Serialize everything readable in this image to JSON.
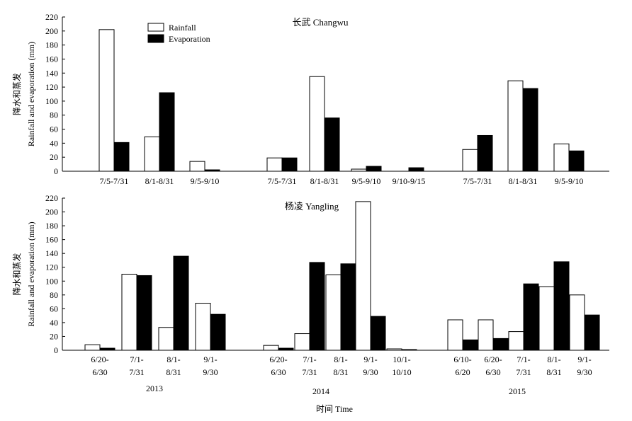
{
  "chart_data": [
    {
      "type": "bar",
      "title": "长武 Changwu",
      "ylabel_cn": "降水和蒸发",
      "ylabel_en": "Rainfall and evaporation (mm)",
      "ylim": [
        0,
        220
      ],
      "yticks": [
        0,
        20,
        40,
        60,
        80,
        100,
        120,
        140,
        160,
        180,
        200,
        220
      ],
      "legend": {
        "placement": "top-left",
        "entries": [
          "Rainfall",
          "Evaporation"
        ]
      },
      "series": [
        {
          "name": "Rainfall",
          "color": "#ffffff"
        },
        {
          "name": "Evaporation",
          "color": "#000000"
        }
      ],
      "groups": [
        {
          "year": "2013",
          "categories": [
            {
              "label": "7/5-7/31",
              "rainfall": 202,
              "evaporation": 41
            },
            {
              "label": "8/1-8/31",
              "rainfall": 49,
              "evaporation": 112
            },
            {
              "label": "9/5-9/10",
              "rainfall": 14,
              "evaporation": 2
            }
          ]
        },
        {
          "year": "2014",
          "categories": [
            {
              "label": "7/5-7/31",
              "rainfall": 19,
              "evaporation": 19
            },
            {
              "label": "8/1-8/31",
              "rainfall": 135,
              "evaporation": 76
            },
            {
              "label": "9/5-9/10",
              "rainfall": 3,
              "evaporation": 7
            },
            {
              "label": "9/10-9/15",
              "rainfall": 0,
              "evaporation": 5
            }
          ]
        },
        {
          "year": "2015",
          "categories": [
            {
              "label": "7/5-7/31",
              "rainfall": 31,
              "evaporation": 51
            },
            {
              "label": "8/1-8/31",
              "rainfall": 129,
              "evaporation": 118
            },
            {
              "label": "9/5-9/10",
              "rainfall": 39,
              "evaporation": 29
            }
          ]
        }
      ]
    },
    {
      "type": "bar",
      "title": "杨凌 Yangling",
      "ylabel_cn": "降水和蒸发",
      "ylabel_en": "Rainfall and evaporation (mm)",
      "ylim": [
        0,
        220
      ],
      "yticks": [
        0,
        20,
        40,
        60,
        80,
        100,
        120,
        140,
        160,
        180,
        200,
        220
      ],
      "xlabel": "时间 Time",
      "series": [
        {
          "name": "Rainfall",
          "color": "#ffffff"
        },
        {
          "name": "Evaporation",
          "color": "#000000"
        }
      ],
      "groups": [
        {
          "year": "2013",
          "categories": [
            {
              "label": "6/20-\n6/30",
              "rainfall": 8,
              "evaporation": 3
            },
            {
              "label": "7/1-\n7/31",
              "rainfall": 110,
              "evaporation": 108
            },
            {
              "label": "8/1-\n8/31",
              "rainfall": 33,
              "evaporation": 136
            },
            {
              "label": "9/1-\n9/30",
              "rainfall": 68,
              "evaporation": 52
            }
          ]
        },
        {
          "year": "2014",
          "categories": [
            {
              "label": "6/20-\n6/30",
              "rainfall": 7,
              "evaporation": 3
            },
            {
              "label": "7/1-\n7/31",
              "rainfall": 24,
              "evaporation": 127
            },
            {
              "label": "8/1-\n8/31",
              "rainfall": 109,
              "evaporation": 125
            },
            {
              "label": "9/1-\n9/30",
              "rainfall": 215,
              "evaporation": 49
            },
            {
              "label": "10/1-\n10/10",
              "rainfall": 2,
              "evaporation": 1
            }
          ]
        },
        {
          "year": "2015",
          "categories": [
            {
              "label": "6/10-\n6/20",
              "rainfall": 44,
              "evaporation": 15
            },
            {
              "label": "6/20-\n6/30",
              "rainfall": 44,
              "evaporation": 17
            },
            {
              "label": "7/1-\n7/31",
              "rainfall": 27,
              "evaporation": 96
            },
            {
              "label": "8/1-\n8/31",
              "rainfall": 92,
              "evaporation": 128
            },
            {
              "label": "9/1-\n9/30",
              "rainfall": 80,
              "evaporation": 51
            }
          ]
        }
      ]
    }
  ]
}
